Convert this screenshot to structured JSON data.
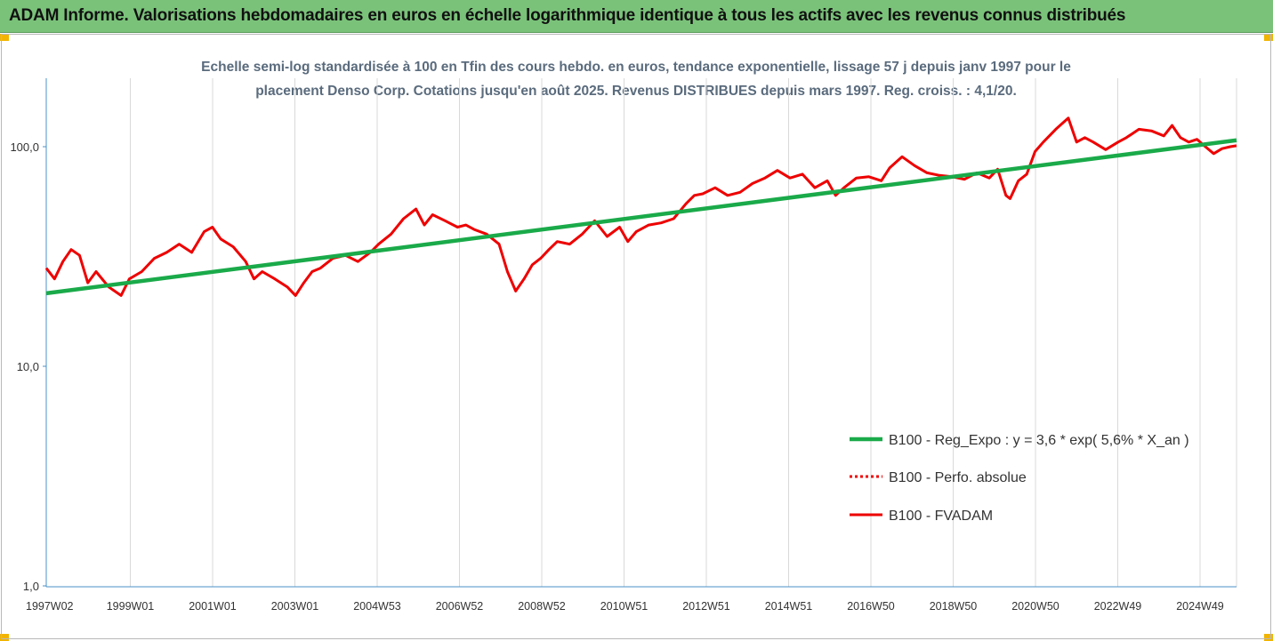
{
  "banner": {
    "title": "ADAM Informe. Valorisations hebdomadaires en euros en échelle logarithmique identique à tous les actifs avec les revenus connus distribués"
  },
  "colors": {
    "banner_bg": "#7ac27a",
    "trend": "#1aaa4a",
    "fvadam": "#ee0000",
    "perfo": "#ee0000",
    "axis": "#4a90c8",
    "title_text": "#5a6b7d",
    "corner": "#f2b400"
  },
  "chart_data": {
    "type": "line",
    "title_line1": "Echelle semi-log standardisée à 100 en Tfin des cours hebdo. en euros, tendance exponentielle, lissage 57 j depuis janv 1997 pour le",
    "title_line2": "placement Denso Corp. Cotations jusqu'en août 2025. Revenus DISTRIBUES depuis mars 1997. Reg. croiss. : 4,1/20.",
    "y_scale": "log",
    "ylim": [
      1,
      200
    ],
    "y_ticks": [
      1,
      10,
      100
    ],
    "y_tick_labels": [
      "1,0",
      "10,0",
      "100,0"
    ],
    "grid": "vertical",
    "x_tick_labels": [
      "1997W02",
      "1999W01",
      "2001W01",
      "2003W01",
      "2004W53",
      "2006W52",
      "2008W52",
      "2010W51",
      "2012W51",
      "2014W51",
      "2016W50",
      "2018W50",
      "2020W50",
      "2022W49",
      "2024W49"
    ],
    "x_range": [
      1997.0,
      2025.65
    ],
    "legend_position": "bottom-right",
    "series": [
      {
        "name": "B100 - Reg_Expo : y = 3,6 * exp( 5,6% *  X_an )",
        "style": "trend",
        "x": [
          1997.0,
          2025.65
        ],
        "y": [
          21.5,
          107
        ]
      },
      {
        "name": "B100 - Perfo. absolue",
        "style": "dotted",
        "x": [],
        "y": []
      },
      {
        "name": "B100 - FVADAM",
        "style": "solid",
        "x": [
          1997.0,
          1997.2,
          1997.4,
          1997.6,
          1997.8,
          1998.0,
          1998.2,
          1998.5,
          1998.8,
          1999.0,
          1999.3,
          1999.6,
          1999.9,
          2000.2,
          2000.5,
          2000.8,
          2001.0,
          2001.2,
          2001.5,
          2001.8,
          2002.0,
          2002.2,
          2002.5,
          2002.8,
          2003.0,
          2003.2,
          2003.4,
          2003.6,
          2003.9,
          2004.2,
          2004.5,
          2004.8,
          2005.0,
          2005.3,
          2005.6,
          2005.9,
          2006.1,
          2006.3,
          2006.6,
          2006.9,
          2007.1,
          2007.3,
          2007.6,
          2007.9,
          2008.1,
          2008.3,
          2008.5,
          2008.7,
          2008.9,
          2009.1,
          2009.3,
          2009.6,
          2009.9,
          2010.2,
          2010.5,
          2010.8,
          2011.0,
          2011.2,
          2011.5,
          2011.8,
          2012.1,
          2012.4,
          2012.6,
          2012.8,
          2013.1,
          2013.4,
          2013.7,
          2014.0,
          2014.3,
          2014.6,
          2014.9,
          2015.2,
          2015.5,
          2015.8,
          2016.0,
          2016.2,
          2016.5,
          2016.8,
          2017.1,
          2017.3,
          2017.6,
          2017.9,
          2018.2,
          2018.5,
          2018.8,
          2019.1,
          2019.4,
          2019.7,
          2019.9,
          2020.1,
          2020.2,
          2020.4,
          2020.6,
          2020.8,
          2021.0,
          2021.3,
          2021.6,
          2021.8,
          2022.0,
          2022.2,
          2022.5,
          2022.8,
          2023.0,
          2023.3,
          2023.6,
          2023.9,
          2024.1,
          2024.3,
          2024.5,
          2024.7,
          2024.9,
          2025.1,
          2025.3,
          2025.5,
          2025.65
        ],
        "y": [
          28,
          25,
          30,
          34,
          32,
          24,
          27,
          23,
          21,
          25,
          27,
          31,
          33,
          36,
          33,
          41,
          43,
          38,
          35,
          30,
          25,
          27,
          25,
          23,
          21,
          24,
          27,
          28,
          31,
          32,
          30,
          33,
          36,
          40,
          47,
          52,
          44,
          49,
          46,
          43,
          44,
          42,
          40,
          36,
          27,
          22,
          25,
          29,
          31,
          34,
          37,
          36,
          40,
          46,
          39,
          43,
          37,
          41,
          44,
          45,
          47,
          55,
          60,
          61,
          65,
          60,
          62,
          68,
          72,
          78,
          72,
          75,
          65,
          70,
          60,
          65,
          72,
          73,
          70,
          80,
          90,
          82,
          76,
          74,
          73,
          71,
          76,
          72,
          79,
          60,
          58,
          70,
          75,
          95,
          105,
          120,
          135,
          105,
          110,
          105,
          97,
          105,
          110,
          120,
          118,
          112,
          125,
          110,
          105,
          108,
          100,
          93,
          98,
          100,
          101
        ]
      }
    ]
  }
}
